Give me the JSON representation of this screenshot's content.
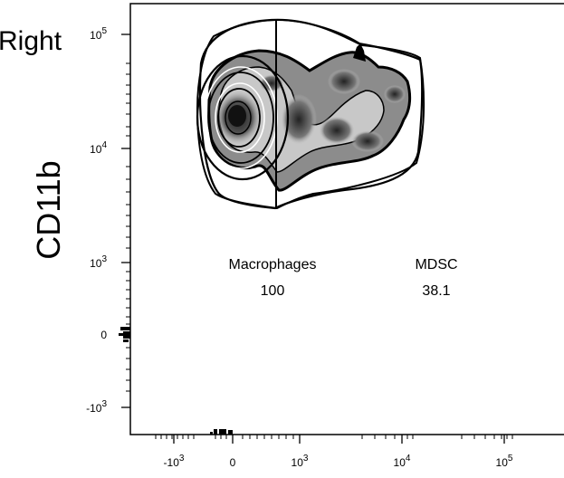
{
  "corner_text": "Right",
  "chart_data": {
    "type": "contour",
    "title": "",
    "xlabel": "",
    "ylabel": "CD11b",
    "x_scale": "biexponential",
    "y_scale": "biexponential",
    "x_ticks": [
      {
        "value": -1000,
        "base": "-10",
        "exp": "3"
      },
      {
        "value": 0,
        "base": "0",
        "exp": ""
      },
      {
        "value": 1000,
        "base": "10",
        "exp": "3"
      },
      {
        "value": 10000,
        "base": "10",
        "exp": "4"
      },
      {
        "value": 100000,
        "base": "10",
        "exp": "5"
      }
    ],
    "y_ticks": [
      {
        "value": 100000,
        "base": "10",
        "exp": "5"
      },
      {
        "value": 10000,
        "base": "10",
        "exp": "4"
      },
      {
        "value": 1000,
        "base": "10",
        "exp": "3"
      },
      {
        "value": 0,
        "base": "0",
        "exp": ""
      },
      {
        "value": -1000,
        "base": "-10",
        "exp": "3"
      }
    ],
    "gates": [
      {
        "name": "Macrophages",
        "value": "100"
      },
      {
        "name": "MDSC",
        "value": "38.1"
      }
    ]
  }
}
